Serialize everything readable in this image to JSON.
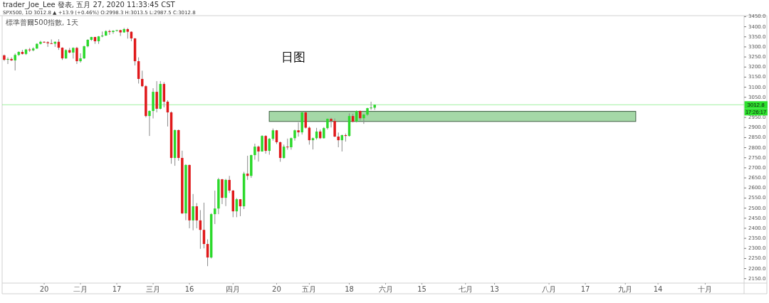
{
  "chart_data": {
    "type": "candlestick",
    "title": "日图",
    "subtitle": "SPX500, 1D 3012.8 ▲ +13.9 (+0.46%) O:2998.3 H:3013.5 L:2987.5 C:3012.8",
    "annotations": [
      "trader_Joe_Lee 發表, 五月 27, 2020 11:33:45 CST",
      "標準普爾500指數, 1天",
      "17:26:17"
    ],
    "categories": [
      null,
      null,
      null,
      null,
      null,
      null,
      null,
      null,
      null,
      null,
      null,
      "20",
      null,
      null,
      null,
      null,
      null,
      null,
      null,
      null,
      null,
      "二月",
      null,
      null,
      null,
      null,
      null,
      null,
      null,
      null,
      null,
      "17",
      null,
      null,
      null,
      null,
      null,
      null,
      null,
      null,
      null,
      "三月",
      null,
      null,
      null,
      null,
      null,
      null,
      null,
      null,
      null,
      "16",
      null,
      null,
      null,
      null,
      null,
      null,
      null,
      null,
      null,
      null,
      null,
      "四月",
      null,
      null,
      null,
      null,
      null,
      null,
      null,
      null,
      null,
      null,
      null,
      "20",
      null,
      null,
      null,
      null,
      null,
      null,
      null,
      null,
      "五月",
      null,
      null,
      null,
      null,
      null,
      null,
      null,
      null,
      null,
      null,
      "18",
      null,
      null,
      null,
      null,
      null,
      null,
      null,
      null,
      null,
      "六月",
      null,
      null,
      null,
      null,
      null,
      null,
      null,
      null,
      null,
      "15",
      null,
      null,
      null,
      null,
      null,
      null,
      null,
      null,
      null,
      null,
      null,
      "七月",
      null,
      null,
      null,
      null,
      null,
      null,
      null,
      "13",
      null,
      null,
      null,
      null,
      null,
      null,
      null,
      null,
      null,
      null,
      null,
      null,
      null,
      null,
      "八月",
      null,
      null,
      null,
      null,
      null,
      null,
      null,
      null,
      null,
      "17",
      null,
      null,
      null,
      null,
      null,
      null,
      null,
      null,
      null,
      null,
      "九月",
      null,
      null,
      null,
      null,
      null,
      null,
      null,
      null,
      "14",
      null,
      null,
      null,
      null,
      null,
      null,
      null,
      null,
      null,
      null,
      null,
      null,
      "十月",
      null,
      null,
      null,
      null,
      null,
      null,
      null,
      null,
      null,
      null
    ],
    "ohlc": [
      [
        3258,
        3262,
        3230,
        3236
      ],
      [
        3236,
        3248,
        3215,
        3240
      ],
      [
        3240,
        3248,
        3230,
        3233
      ],
      [
        3233,
        3267,
        3183,
        3260
      ],
      [
        3260,
        3278,
        3255,
        3275
      ],
      [
        3275,
        3285,
        3262,
        3265
      ],
      [
        3265,
        3290,
        3260,
        3287
      ],
      [
        3287,
        3295,
        3275,
        3283
      ],
      [
        3283,
        3298,
        3278,
        3292
      ],
      [
        3292,
        3318,
        3290,
        3315
      ],
      [
        3315,
        3330,
        3312,
        3325
      ],
      [
        3325,
        3328,
        3320,
        3323
      ],
      [
        3323,
        3328,
        3300,
        3318
      ],
      [
        3318,
        3337,
        3315,
        3316
      ],
      [
        3316,
        3327,
        3300,
        3325
      ],
      [
        3325,
        3338,
        3285,
        3296
      ],
      [
        3296,
        3298,
        3235,
        3243
      ],
      [
        3243,
        3288,
        3240,
        3284
      ],
      [
        3284,
        3295,
        3268,
        3272
      ],
      [
        3272,
        3298,
        3242,
        3295
      ],
      [
        3295,
        3300,
        3215,
        3229
      ],
      [
        3229,
        3268,
        3222,
        3243
      ],
      [
        3243,
        3306,
        3240,
        3303
      ],
      [
        3303,
        3338,
        3298,
        3335
      ],
      [
        3335,
        3350,
        3330,
        3349
      ],
      [
        3349,
        3350,
        3315,
        3328
      ],
      [
        3328,
        3354,
        3315,
        3352
      ],
      [
        3352,
        3376,
        3348,
        3356
      ],
      [
        3356,
        3382,
        3355,
        3378
      ],
      [
        3378,
        3385,
        3360,
        3374
      ],
      [
        3374,
        3382,
        3365,
        3380
      ],
      [
        3380,
        3385,
        3376,
        3383
      ],
      [
        3383,
        3385,
        3354,
        3372
      ],
      [
        3372,
        3394,
        3370,
        3388
      ],
      [
        3388,
        3394,
        3341,
        3375
      ],
      [
        3375,
        3377,
        3328,
        3342
      ],
      [
        3342,
        3344,
        3208,
        3229
      ],
      [
        3229,
        3248,
        3118,
        3141
      ],
      [
        3141,
        3182,
        3100,
        3105
      ],
      [
        3105,
        3110,
        2950,
        2957
      ],
      [
        2957,
        2985,
        2858,
        2982
      ],
      [
        2982,
        3095,
        2945,
        3077
      ],
      [
        3077,
        3130,
        2975,
        2993
      ],
      [
        2993,
        3130,
        2990,
        3116
      ],
      [
        3116,
        3125,
        3000,
        3028
      ],
      [
        3028,
        3035,
        2905,
        2975
      ],
      [
        2975,
        2980,
        2720,
        2749
      ],
      [
        2749,
        2890,
        2710,
        2887
      ],
      [
        2887,
        2890,
        2735,
        2749
      ],
      [
        2749,
        2785,
        2470,
        2474
      ],
      [
        2474,
        2718,
        2440,
        2714
      ],
      [
        2714,
        2716,
        2400,
        2439
      ],
      [
        2439,
        2570,
        2390,
        2509
      ],
      [
        2509,
        2525,
        2400,
        2439
      ],
      [
        2439,
        2490,
        2298,
        2392
      ],
      [
        2392,
        2527,
        2300,
        2322
      ],
      [
        2322,
        2345,
        2212,
        2255
      ],
      [
        2255,
        2475,
        2250,
        2470
      ],
      [
        2470,
        2587,
        2421,
        2498
      ],
      [
        2498,
        2650,
        2470,
        2643
      ],
      [
        2643,
        2645,
        2520,
        2551
      ],
      [
        2551,
        2645,
        2510,
        2640
      ],
      [
        2640,
        2660,
        2575,
        2587
      ],
      [
        2587,
        2590,
        2455,
        2484
      ],
      [
        2484,
        2550,
        2455,
        2544
      ],
      [
        2544,
        2545,
        2460,
        2509
      ],
      [
        2509,
        2680,
        2495,
        2671
      ],
      [
        2671,
        2760,
        2640,
        2660
      ],
      [
        2660,
        2765,
        2650,
        2763
      ],
      [
        2763,
        2820,
        2740,
        2805
      ],
      [
        2805,
        2810,
        2731,
        2781
      ],
      [
        2781,
        2862,
        2780,
        2858
      ],
      [
        2858,
        2862,
        2770,
        2784
      ],
      [
        2784,
        2848,
        2765,
        2844
      ],
      [
        2844,
        2895,
        2835,
        2886
      ],
      [
        2886,
        2888,
        2818,
        2827
      ],
      [
        2827,
        2830,
        2730,
        2749
      ],
      [
        2749,
        2815,
        2745,
        2805
      ],
      [
        2805,
        2845,
        2790,
        2802
      ],
      [
        2802,
        2850,
        2790,
        2847
      ],
      [
        2847,
        2890,
        2835,
        2886
      ],
      [
        2886,
        2925,
        2855,
        2876
      ],
      [
        2876,
        2980,
        2865,
        2975
      ],
      [
        2975,
        2978,
        2895,
        2899
      ],
      [
        2899,
        2905,
        2815,
        2837
      ],
      [
        2837,
        2850,
        2791,
        2847
      ],
      [
        2847,
        2898,
        2840,
        2880
      ],
      [
        2880,
        2890,
        2843,
        2847
      ],
      [
        2847,
        2902,
        2845,
        2897
      ],
      [
        2897,
        2945,
        2890,
        2943
      ],
      [
        2943,
        2948,
        2900,
        2932
      ],
      [
        2932,
        2945,
        2852,
        2855
      ],
      [
        2855,
        2875,
        2802,
        2837
      ],
      [
        2837,
        2865,
        2781,
        2862
      ],
      [
        2862,
        2870,
        2830,
        2858
      ],
      [
        2858,
        2970,
        2855,
        2957
      ],
      [
        2957,
        2968,
        2925,
        2929
      ],
      [
        2929,
        2985,
        2925,
        2982
      ],
      [
        2982,
        2985,
        2935,
        2946
      ],
      [
        2946,
        2967,
        2918,
        2964
      ],
      [
        2964,
        2998,
        2958,
        2996
      ],
      [
        2996,
        3028,
        2988,
        2999
      ],
      [
        2998.3,
        3013.5,
        2987.5,
        3012.8
      ],
      null,
      null,
      null,
      null,
      null,
      null,
      null,
      null,
      null,
      null,
      null,
      null,
      null,
      null,
      null,
      null,
      null,
      null,
      null,
      null,
      null,
      null,
      null,
      null,
      null,
      null,
      null,
      null,
      null,
      null,
      null,
      null,
      null,
      null,
      null,
      null,
      null,
      null,
      null,
      null,
      null,
      null,
      null,
      null,
      null,
      null,
      null,
      null,
      null,
      null,
      null,
      null,
      null,
      null,
      null,
      null,
      null,
      null,
      null,
      null,
      null,
      null,
      null,
      null,
      null,
      null,
      null,
      null,
      null,
      null,
      null,
      null,
      null,
      null,
      null,
      null,
      null,
      null,
      null,
      null,
      null,
      null,
      null,
      null,
      null,
      null,
      null,
      null,
      null,
      null,
      null,
      null,
      null,
      null,
      null,
      null,
      null,
      null,
      null,
      null,
      null
    ],
    "colors": [
      "#e0191b",
      "#2bd92b",
      "#e0191b",
      "#2bd92b",
      "#2bd92b",
      "#e0191b",
      "#2bd92b",
      "#e0191b",
      "#2bd92b",
      "#2bd92b",
      "#2bd92b",
      "#e0191b",
      "#e0191b",
      "#e0191b",
      "#2bd92b",
      "#e0191b",
      "#e0191b",
      "#2bd92b",
      "#e0191b",
      "#2bd92b",
      "#e0191b",
      "#2bd92b",
      "#2bd92b",
      "#2bd92b",
      "#2bd92b",
      "#e0191b",
      "#2bd92b",
      "#2bd92b",
      "#2bd92b",
      "#e0191b",
      "#2bd92b",
      "#2bd92b",
      "#e0191b",
      "#2bd92b",
      "#e0191b",
      "#e0191b",
      "#e0191b",
      "#e0191b",
      "#e0191b",
      "#e0191b",
      "#2bd92b",
      "#2bd92b",
      "#e0191b",
      "#2bd92b",
      "#e0191b",
      "#e0191b",
      "#e0191b",
      "#2bd92b",
      "#e0191b",
      "#e0191b",
      "#2bd92b",
      "#e0191b",
      "#2bd92b",
      "#e0191b",
      "#e0191b",
      "#e0191b",
      "#e0191b",
      "#2bd92b",
      "#2bd92b",
      "#2bd92b",
      "#e0191b",
      "#2bd92b",
      "#e0191b",
      "#e0191b",
      "#2bd92b",
      "#e0191b",
      "#2bd92b",
      "#e0191b",
      "#2bd92b",
      "#2bd92b",
      "#e0191b",
      "#2bd92b",
      "#e0191b",
      "#2bd92b",
      "#2bd92b",
      "#e0191b",
      "#e0191b",
      "#2bd92b",
      "#e0191b",
      "#2bd92b",
      "#2bd92b",
      "#e0191b",
      "#2bd92b",
      "#e0191b",
      "#e0191b",
      "#2bd92b",
      "#2bd92b",
      "#e0191b",
      "#2bd92b",
      "#2bd92b",
      "#e0191b",
      "#e0191b",
      "#e0191b",
      "#2bd92b",
      "#e0191b",
      "#2bd92b",
      "#e0191b",
      "#2bd92b",
      "#e0191b",
      "#2bd92b",
      "#2bd92b",
      "#2bd92b",
      "#2bd92b",
      null,
      null,
      null,
      null,
      null,
      null,
      null,
      null,
      null,
      null,
      null,
      null,
      null,
      null,
      null,
      null,
      null,
      null,
      null,
      null,
      null,
      null,
      null,
      null,
      null,
      null,
      null,
      null,
      null,
      null,
      null,
      null,
      null,
      null,
      null,
      null,
      null,
      null,
      null,
      null,
      null,
      null,
      null,
      null,
      null,
      null,
      null,
      null,
      null,
      null,
      null,
      null,
      null,
      null,
      null,
      null,
      null,
      null,
      null,
      null,
      null,
      null,
      null,
      null,
      null,
      null,
      null,
      null,
      null,
      null,
      null,
      null,
      null,
      null,
      null,
      null,
      null,
      null,
      null,
      null,
      null,
      null,
      null,
      null,
      null,
      null,
      null,
      null,
      null,
      null,
      null,
      null,
      null,
      null,
      null,
      null,
      null,
      null,
      null,
      null,
      null
    ],
    "bands": [
      {
        "axis": "y",
        "from": 2930,
        "to": 2980,
        "color": "#a5d8a7"
      }
    ],
    "ref_lines": [
      {
        "axis": "y",
        "value": 3012.8,
        "label": "3012.8",
        "color": "#2ee02e"
      }
    ],
    "ylim": [
      2128,
      3455
    ],
    "yticks": [
      {
        "value": 2150,
        "label": "2150.0"
      },
      {
        "value": 2200,
        "label": "2200.0"
      },
      {
        "value": 2250,
        "label": "2250.0"
      },
      {
        "value": 2300,
        "label": "2300.0"
      },
      {
        "value": 2350,
        "label": "2350.0"
      },
      {
        "value": 2400,
        "label": "2400.0"
      },
      {
        "value": 2450,
        "label": "2450.0"
      },
      {
        "value": 2500,
        "label": "2500.0"
      },
      {
        "value": 2550,
        "label": "2550.0"
      },
      {
        "value": 2600,
        "label": "2600.0"
      },
      {
        "value": 2650,
        "label": "2650.0"
      },
      {
        "value": 2700,
        "label": "2700.0"
      },
      {
        "value": 2750,
        "label": "2750.0"
      },
      {
        "value": 2800,
        "label": "2800.0"
      },
      {
        "value": 2850,
        "label": "2850.0"
      },
      {
        "value": 2900,
        "label": "2900.0"
      },
      {
        "value": 2950,
        "label": "2950.0"
      },
      {
        "value": 3050,
        "label": "3050.0"
      },
      {
        "value": 3100,
        "label": "3100.0"
      },
      {
        "value": 3150,
        "label": "3150.0"
      },
      {
        "value": 3200,
        "label": "3200.0"
      },
      {
        "value": 3250,
        "label": "3250.0"
      },
      {
        "value": 3300,
        "label": "3300.0"
      },
      {
        "value": 3350,
        "label": "3350.0"
      },
      {
        "value": 3400,
        "label": "3400.0"
      },
      {
        "value": 3450,
        "label": "3450.0"
      }
    ]
  }
}
